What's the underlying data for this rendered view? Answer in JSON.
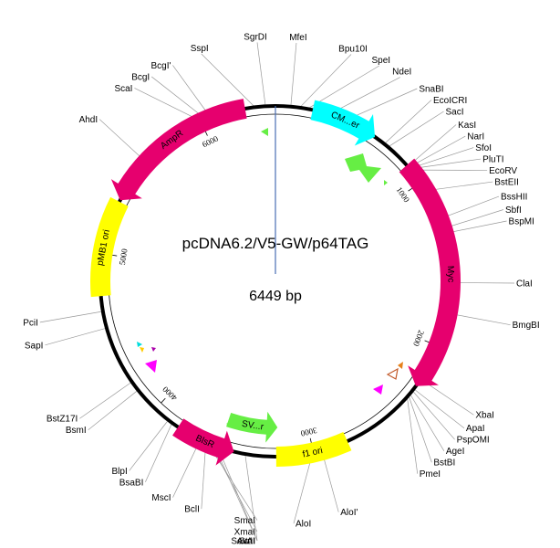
{
  "plasmid": {
    "name": "pcDNA6.2/V5-GW/p64TAG",
    "length_label": "6449 bp",
    "length_bp": 6449
  },
  "colors": {
    "magenta": "#e6006e",
    "yellow": "#ffff00",
    "cyan": "#00ffff",
    "green": "#66ee44",
    "backbone": "#000000",
    "cursor": "#4a6fb5"
  },
  "ticks": [
    {
      "bp": 1000,
      "label": "1000"
    },
    {
      "bp": 2000,
      "label": "2000"
    },
    {
      "bp": 3000,
      "label": "3000"
    },
    {
      "bp": 4000,
      "label": "4000"
    },
    {
      "bp": 5000,
      "label": "5000"
    },
    {
      "bp": 6000,
      "label": "6000"
    }
  ],
  "features": [
    {
      "name": "CM...er",
      "start": 220,
      "end": 620,
      "color": "#00ffff",
      "direction": "cw",
      "type": "arc"
    },
    {
      "name": "Myc",
      "start": 870,
      "end": 2270,
      "color": "#e6006e",
      "direction": "cw",
      "type": "arc"
    },
    {
      "name": "f1 ori",
      "start": 2790,
      "end": 3220,
      "color": "#ffff00",
      "direction": "none",
      "type": "arc"
    },
    {
      "name": "BlsR",
      "start": 3470,
      "end": 3830,
      "color": "#e6006e",
      "direction": "ccw",
      "type": "arc"
    },
    {
      "name": "pMB1 ori",
      "start": 4750,
      "end": 5320,
      "color": "#ffff00",
      "direction": "none",
      "type": "arc"
    },
    {
      "name": "AmpR",
      "start": 5330,
      "end": 6270,
      "color": "#e6006e",
      "direction": "ccw",
      "type": "arc"
    },
    {
      "name": "SV...r",
      "start": 3210,
      "end": 3560,
      "color": "#66ee44",
      "direction": "ccw",
      "type": "inner"
    }
  ],
  "sites": [
    {
      "name": "SgrDI",
      "bp": 6390
    },
    {
      "name": "SspI",
      "bp": 6320
    },
    {
      "name": "BcgI'",
      "bp": 6060
    },
    {
      "name": "BcgI",
      "bp": 6030
    },
    {
      "name": "ScaI",
      "bp": 6000
    },
    {
      "name": "AhdI",
      "bp": 5600
    },
    {
      "name": "MfeI",
      "bp": 90
    },
    {
      "name": "Bpu10I",
      "bp": 150
    },
    {
      "name": "SpeI",
      "bp": 200
    },
    {
      "name": "NdeI",
      "bp": 330
    },
    {
      "name": "SnaBI",
      "bp": 430
    },
    {
      "name": "EcoICRI",
      "bp": 690
    },
    {
      "name": "SacI",
      "bp": 720
    },
    {
      "name": "KasI",
      "bp": 880
    },
    {
      "name": "NarI",
      "bp": 890
    },
    {
      "name": "SfoI",
      "bp": 900
    },
    {
      "name": "PluTI",
      "bp": 905
    },
    {
      "name": "EcoRV",
      "bp": 915
    },
    {
      "name": "BstEII",
      "bp": 1060
    },
    {
      "name": "BssHII",
      "bp": 1240
    },
    {
      "name": "SbfI",
      "bp": 1300
    },
    {
      "name": "BspMI",
      "bp": 1330
    },
    {
      "name": "ClaI",
      "bp": 1620
    },
    {
      "name": "BmgBI",
      "bp": 1800
    },
    {
      "name": "XbaI",
      "bp": 2220
    },
    {
      "name": "ApaI",
      "bp": 2290
    },
    {
      "name": "PspOMI",
      "bp": 2305
    },
    {
      "name": "AgeI",
      "bp": 2330
    },
    {
      "name": "BstBI",
      "bp": 2345
    },
    {
      "name": "PmeI",
      "bp": 2360
    },
    {
      "name": "AloI'",
      "bp": 2950
    },
    {
      "name": "AloI",
      "bp": 3010
    },
    {
      "name": "SexAI",
      "bp": 3400
    },
    {
      "name": "AvrII",
      "bp": 3560
    },
    {
      "name": "StuI",
      "bp": 3580
    },
    {
      "name": "XmaI",
      "bp": 3600
    },
    {
      "name": "SmaI",
      "bp": 3620
    },
    {
      "name": "BclI",
      "bp": 3640
    },
    {
      "name": "MscI",
      "bp": 3680
    },
    {
      "name": "BsaBI",
      "bp": 3870
    },
    {
      "name": "BlpI",
      "bp": 3900
    },
    {
      "name": "BsmI",
      "bp": 4150
    },
    {
      "name": "BstZ17I",
      "bp": 4210
    },
    {
      "name": "SapI",
      "bp": 4560
    },
    {
      "name": "PciI",
      "bp": 4660
    }
  ]
}
